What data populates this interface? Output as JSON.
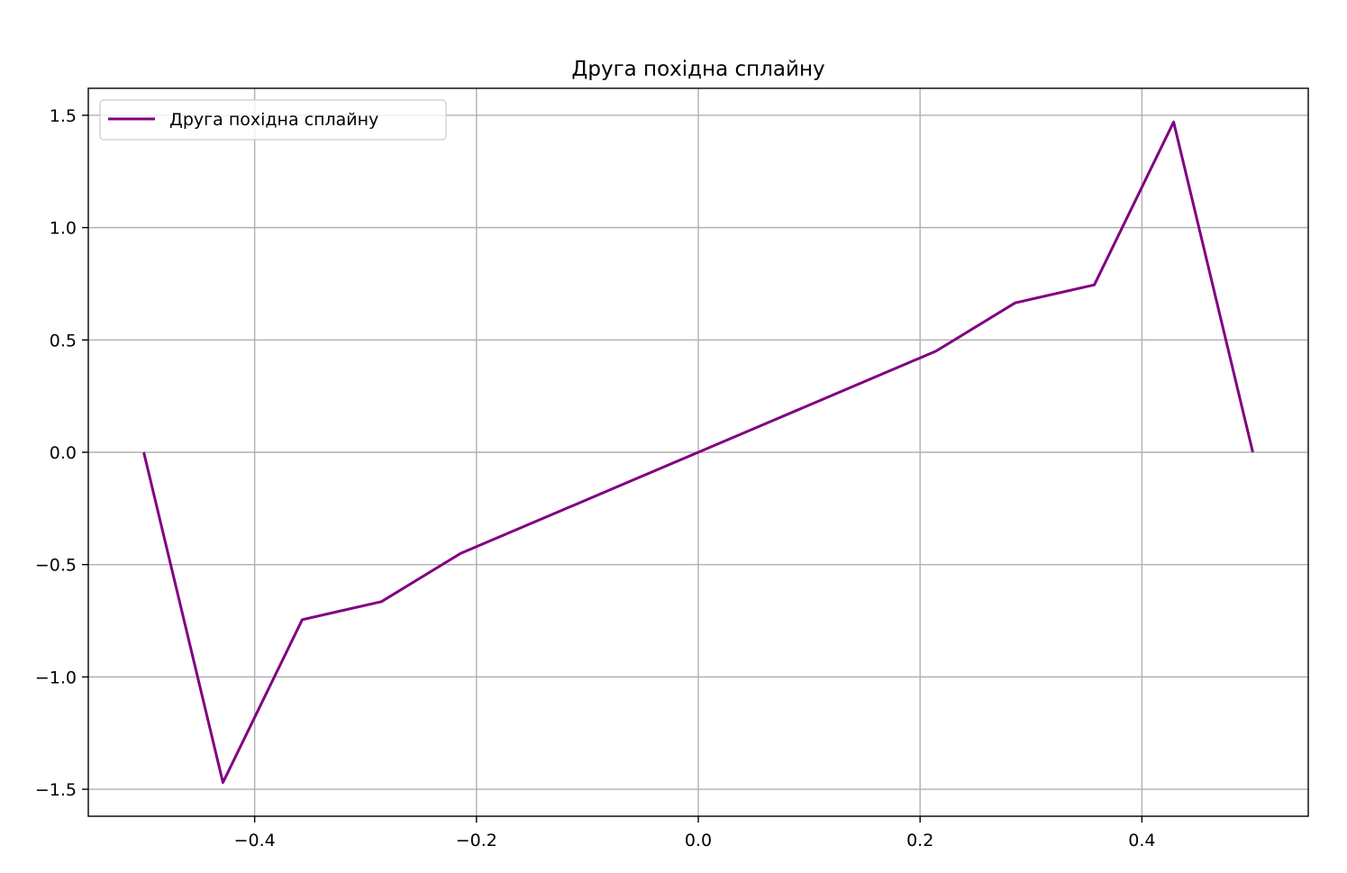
{
  "chart_data": {
    "type": "line",
    "title": "Друга похідна сплайну",
    "xlabel": "",
    "ylabel": "",
    "xlim": [
      -0.55,
      0.55
    ],
    "ylim": [
      -1.62,
      1.62
    ],
    "xticks": [
      -0.4,
      -0.2,
      0.0,
      0.2,
      0.4
    ],
    "xtick_labels": [
      "−0.4",
      "−0.2",
      "0.0",
      "0.2",
      "0.4"
    ],
    "yticks": [
      -1.5,
      -1.0,
      -0.5,
      0.0,
      0.5,
      1.0,
      1.5
    ],
    "ytick_labels": [
      "−1.5",
      "−1.0",
      "−0.5",
      "0.0",
      "0.5",
      "1.0",
      "1.5"
    ],
    "grid": true,
    "legend_position": "top-left",
    "series": [
      {
        "name": "Друга похідна сплайну",
        "color": "#800080",
        "x": [
          -0.5,
          -0.4286,
          -0.3571,
          -0.2857,
          -0.2143,
          -0.0714,
          0.0,
          0.0714,
          0.2143,
          0.2857,
          0.3571,
          0.4286,
          0.5
        ],
        "y": [
          0.0,
          -1.47,
          -0.745,
          -0.665,
          -0.45,
          -0.15,
          0.0,
          0.15,
          0.45,
          0.665,
          0.745,
          1.47,
          0.0
        ]
      }
    ]
  }
}
